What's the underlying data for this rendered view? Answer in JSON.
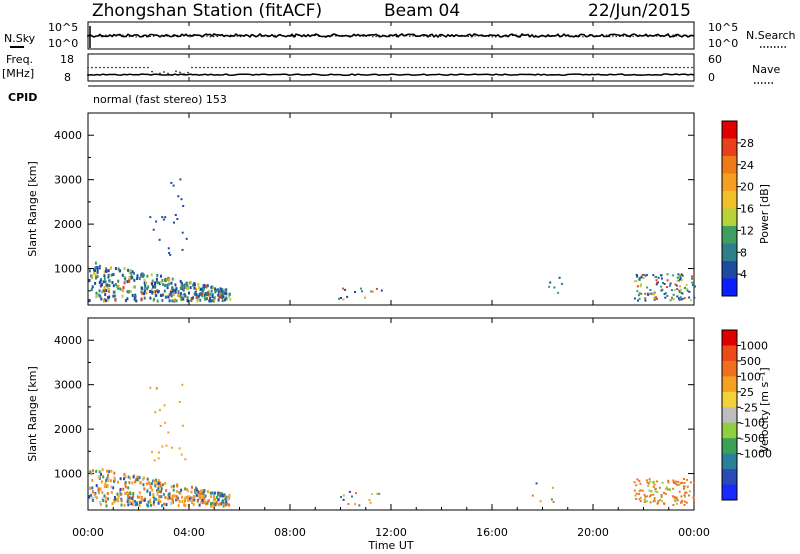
{
  "header": {
    "title": "Zhongshan Station (fitACF)",
    "beam": "Beam 04",
    "date": "22/Jun/2015"
  },
  "noise_panel": {
    "left_label": "N.Sky",
    "right_label": "N.Search",
    "left_ticks": [
      "10^5",
      "10^0"
    ],
    "right_ticks": [
      "10^5",
      "10^0"
    ]
  },
  "freq_panel": {
    "left_label": "Freq.",
    "left_unit": "[MHz]",
    "right_label": "Nave",
    "left_ticks": [
      "18",
      "8"
    ],
    "right_ticks": [
      "60",
      "0"
    ],
    "cpid_label": "CPID",
    "mode": "normal (fast stereo) 153"
  },
  "colors": {
    "power": [
      "#0a1eff",
      "#1e4aa0",
      "#2e7f8a",
      "#3ea060",
      "#b8d23a",
      "#f0c02a",
      "#f5a020",
      "#f07a18",
      "#e8401a",
      "#e00000"
    ],
    "velocity": [
      "#1a2aff",
      "#2a4ab8",
      "#2a7f9a",
      "#3aa055",
      "#8fd040",
      "#bdbdbd",
      "#f2d23a",
      "#f5a020",
      "#f07020",
      "#ec4a1a",
      "#e00000"
    ]
  },
  "chart_data": [
    {
      "type": "heatmap",
      "name": "power",
      "xlabel": "",
      "ylabel": "Slant Range [km]",
      "xlim": [
        0,
        24
      ],
      "ylim": [
        180,
        4500
      ],
      "yticks": [
        1000,
        2000,
        3000,
        4000
      ],
      "colorbar_label": "Power [dB]",
      "colorbar_ticks": [
        4,
        8,
        12,
        16,
        20,
        24,
        28
      ],
      "colorbar_range": [
        0,
        32
      ],
      "grid": false
    },
    {
      "type": "heatmap",
      "name": "velocity",
      "xlabel": "Time UT",
      "ylabel": "Slant Range [km]",
      "xlim": [
        0,
        24
      ],
      "ylim": [
        180,
        4500
      ],
      "yticks": [
        1000,
        2000,
        3000,
        4000
      ],
      "xticks": [
        "00:00",
        "04:00",
        "08:00",
        "12:00",
        "16:00",
        "20:00",
        "00:00"
      ],
      "colorbar_label": "Velocity [m s⁻¹]",
      "colorbar_ticks": [
        "1000",
        "500",
        "100",
        "25",
        "-25",
        "-100",
        "-500",
        "-1000"
      ],
      "grid": false
    }
  ]
}
